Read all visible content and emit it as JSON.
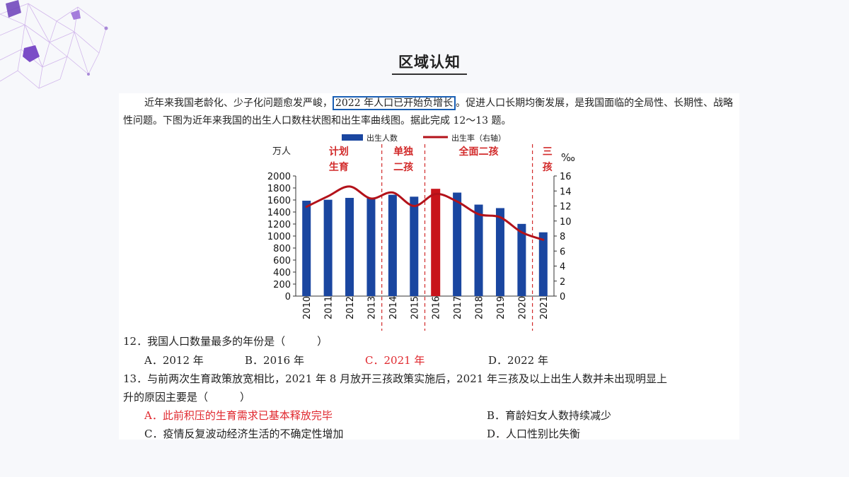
{
  "slide_title": "区域认知",
  "passage": {
    "before": "近年来我国老龄化、少子化问题愈发严峻，",
    "highlight": "2022 年人口已开始负增长",
    "after": "。促进人口长期均衡发展，是我国面临的全局性、长期性、战略性问题。下图为近年来我国的出生人口数柱状图和出生率曲线图。据此完成 12～13 题。"
  },
  "chart_data": {
    "type": "bar",
    "categories": [
      "2010",
      "2011",
      "2012",
      "2013",
      "2014",
      "2015",
      "2016",
      "2017",
      "2018",
      "2019",
      "2020",
      "2021"
    ],
    "series": [
      {
        "name": "出生人数",
        "kind": "bar",
        "axis": "left",
        "values": [
          1588,
          1604,
          1635,
          1640,
          1687,
          1655,
          1786,
          1723,
          1523,
          1465,
          1202,
          1062
        ]
      },
      {
        "name": "出生率（右轴）",
        "kind": "line",
        "axis": "right",
        "values": [
          11.9,
          13.3,
          14.6,
          13.0,
          13.8,
          12.0,
          13.6,
          12.6,
          10.9,
          10.5,
          8.5,
          7.5
        ]
      }
    ],
    "highlight_category": "2016",
    "left_axis": {
      "unit": "万人",
      "range": [
        0,
        2000
      ],
      "ticks": [
        "0",
        "200",
        "400",
        "600",
        "800",
        "1000",
        "1200",
        "1400",
        "1600",
        "1800",
        "2000"
      ]
    },
    "right_axis": {
      "unit": "‰",
      "range": [
        0,
        16
      ],
      "ticks": [
        "0",
        "2",
        "4",
        "6",
        "8",
        "10",
        "12",
        "14",
        "16"
      ]
    },
    "phases": [
      {
        "label_lines": [
          "计划",
          "生育"
        ],
        "from": "2010",
        "to": "2013"
      },
      {
        "label_lines": [
          "单独",
          "二孩"
        ],
        "from": "2014",
        "to": "2015"
      },
      {
        "label_lines": [
          "全面二孩"
        ],
        "from": "2016",
        "to": "2020"
      },
      {
        "label_lines": [
          "三",
          "孩"
        ],
        "from": "2021",
        "to": "2021"
      }
    ],
    "legend_position": "top",
    "colors": {
      "bar": "#1a46a0",
      "bar_highlight": "#c8141b",
      "line": "#b3121a",
      "phase": "#d22b2b"
    },
    "grid": false
  },
  "questions": [
    {
      "stem": "12．我国人口数量最多的年份是（　　　）",
      "options": [
        {
          "text": "A．2012 年",
          "correct": false
        },
        {
          "text": "B．2016 年",
          "correct": false
        },
        {
          "text": "C．2021 年",
          "correct": true
        },
        {
          "text": "D．2022 年",
          "correct": false
        }
      ]
    },
    {
      "stem_line1": "13．与前两次生育政策放宽相比，2021 年 8 月放开三孩政策实施后，2021 年三孩及以上出生人数并未出现明显上",
      "stem_line2": "升的原因主要是（　　　）",
      "options": [
        {
          "text": "A．此前积压的生育需求已基本释放完毕",
          "correct": true
        },
        {
          "text": "B．育龄妇女人数持续减少",
          "correct": false
        },
        {
          "text": "C．疫情反复波动经济生活的不确定性增加",
          "correct": false
        },
        {
          "text": "D．人口性别比失衡",
          "correct": false
        }
      ]
    }
  ]
}
